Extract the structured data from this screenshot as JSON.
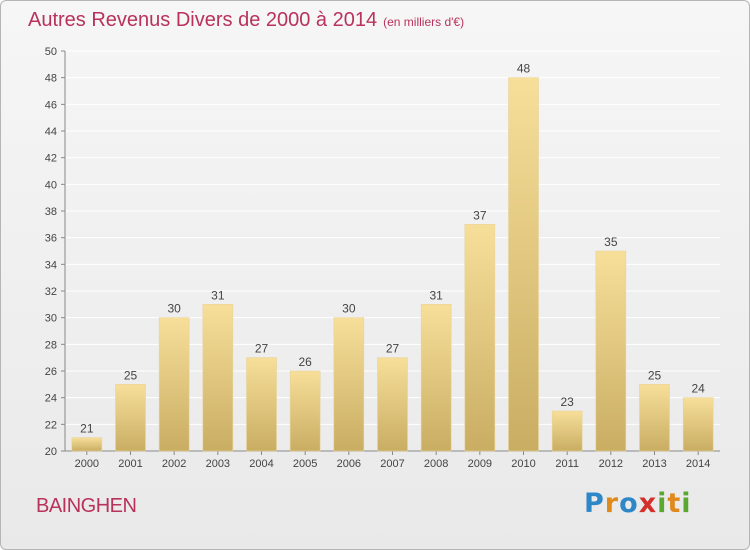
{
  "title": "Autres Revenus Divers de 2000 à 2014",
  "unit_note": "(en milliers d'€)",
  "commune": "BAINGHEN",
  "logo_text": "Proxiti",
  "colors": {
    "title": "#b8325c",
    "bar_top": "#f7df9a",
    "bar_bottom": "#c9ad63",
    "grid": "#ffffff",
    "axis": "#888888",
    "text": "#444444"
  },
  "chart_data": {
    "type": "bar",
    "categories": [
      "2000",
      "2001",
      "2002",
      "2003",
      "2004",
      "2005",
      "2006",
      "2007",
      "2008",
      "2009",
      "2010",
      "2011",
      "2012",
      "2013",
      "2014"
    ],
    "values": [
      21,
      25,
      30,
      31,
      27,
      26,
      30,
      27,
      31,
      37,
      48,
      23,
      35,
      25,
      24
    ],
    "ylim": [
      20,
      50
    ],
    "yticks": [
      20,
      22,
      24,
      26,
      28,
      30,
      32,
      34,
      36,
      38,
      40,
      42,
      44,
      46,
      48,
      50
    ],
    "grid": true,
    "data_labels": true
  }
}
